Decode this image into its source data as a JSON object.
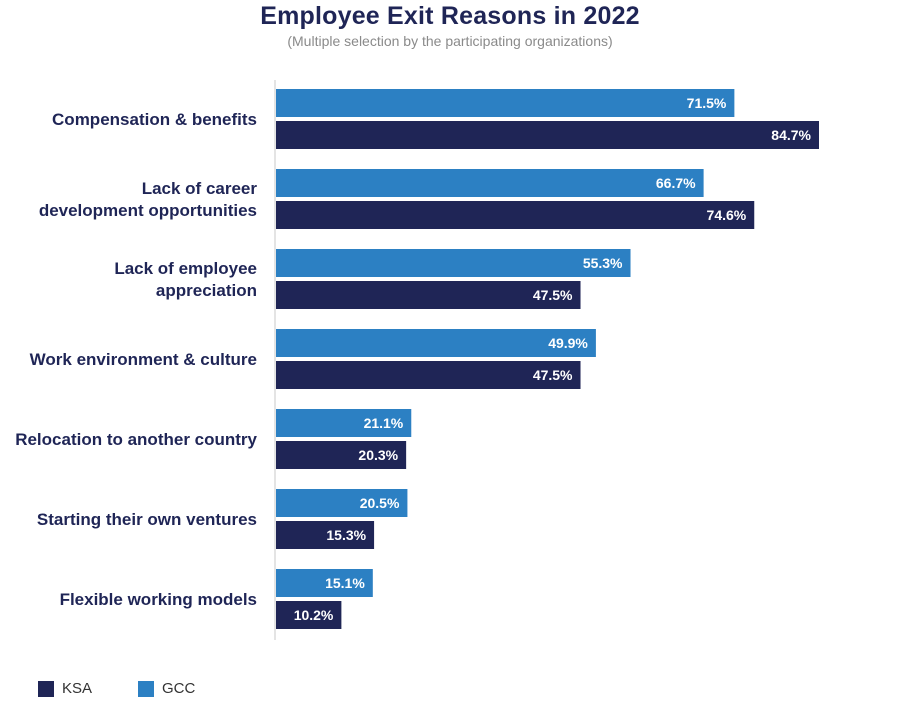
{
  "chart_data": {
    "type": "bar",
    "orientation": "horizontal",
    "title": "Employee Exit Reasons in 2022",
    "subtitle": "(Multiple selection by the participating organizations)",
    "categories": [
      [
        "Compensation & benefits"
      ],
      [
        "Lack of career",
        "development opportunities"
      ],
      [
        "Lack of employee",
        "appreciation"
      ],
      [
        "Work environment & culture"
      ],
      [
        "Relocation to another country"
      ],
      [
        "Starting their own ventures"
      ],
      [
        "Flexible working models"
      ]
    ],
    "series": [
      {
        "name": "GCC",
        "color": "#2c80c3",
        "values": [
          71.5,
          66.7,
          55.3,
          49.9,
          21.1,
          20.5,
          15.1
        ],
        "labels": [
          "71.5%",
          "66.7%",
          "55.3%",
          "49.9%",
          "21.1%",
          "20.5%",
          "15.1%"
        ]
      },
      {
        "name": "KSA",
        "color": "#1f2556",
        "values": [
          84.7,
          74.6,
          47.5,
          47.5,
          20.3,
          15.3,
          10.2
        ],
        "labels": [
          "84.7%",
          "74.6%",
          "47.5%",
          "47.5%",
          "20.3%",
          "15.3%",
          "10.2%"
        ]
      }
    ],
    "legend": [
      {
        "name": "KSA",
        "color": "#1f2556"
      },
      {
        "name": "GCC",
        "color": "#2c80c3"
      }
    ],
    "legend_position": "bottom-left",
    "unit": "%",
    "grid": false
  }
}
